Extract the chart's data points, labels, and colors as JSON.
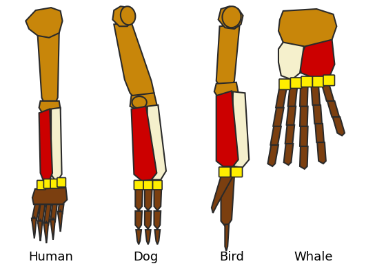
{
  "background_color": "#ffffff",
  "labels": [
    "Human",
    "Dog",
    "Bird",
    "Whale"
  ],
  "label_fontsize": 13,
  "colors": {
    "humerus": "#c8860a",
    "radius": "#cc0000",
    "ulna": "#f5f0cc",
    "carpals": "#ffee00",
    "digits": "#7b3f10",
    "outline": "#2a2a2a"
  },
  "figsize": [
    5.44,
    3.87
  ],
  "dpi": 100
}
